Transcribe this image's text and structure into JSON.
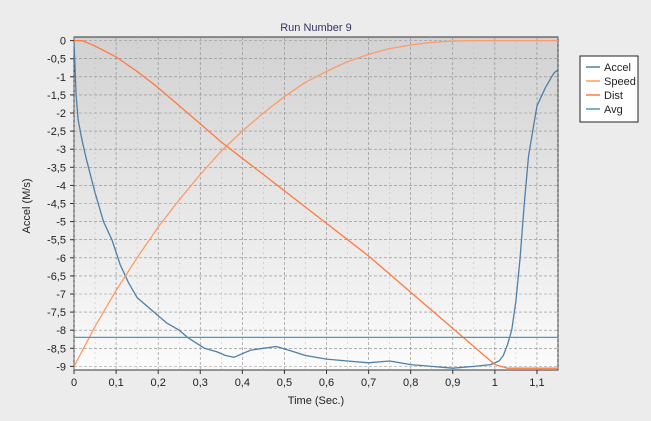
{
  "chart_data": {
    "type": "line",
    "title": "Run Number 9",
    "xlabel": "Time (Sec.)",
    "ylabel": "Accel (M/s)",
    "xlim": [
      0,
      1.15
    ],
    "ylim": [
      -9.1,
      0.1
    ],
    "x_ticks": [
      "0",
      "0,1",
      "0,2",
      "0,3",
      "0,4",
      "0,5",
      "0,6",
      "0,7",
      "0,8",
      "0,9",
      "1",
      "1,1"
    ],
    "y_ticks": [
      "0",
      "-0,5",
      "-1",
      "-1,5",
      "-2",
      "-2,5",
      "-3",
      "-3,5",
      "-4",
      "-4,5",
      "-5",
      "-5,5",
      "-6",
      "-6,5",
      "-7",
      "-7,5",
      "-8",
      "-8,5",
      "-9"
    ],
    "grid": true,
    "legend_position": "right",
    "series": [
      {
        "name": "Accel",
        "color": "#4f7fa8",
        "x": [
          0,
          0.005,
          0.01,
          0.02,
          0.03,
          0.05,
          0.07,
          0.09,
          0.11,
          0.13,
          0.15,
          0.18,
          0.2,
          0.22,
          0.25,
          0.27,
          0.29,
          0.31,
          0.34,
          0.36,
          0.38,
          0.4,
          0.42,
          0.45,
          0.48,
          0.51,
          0.55,
          0.6,
          0.65,
          0.7,
          0.75,
          0.8,
          0.85,
          0.9,
          0.95,
          0.99,
          1.01,
          1.02,
          1.03,
          1.04,
          1.05,
          1.06,
          1.07,
          1.08,
          1.09,
          1.1,
          1.12,
          1.14,
          1.15
        ],
        "y": [
          0,
          -1.5,
          -2.2,
          -2.8,
          -3.3,
          -4.2,
          -5,
          -5.5,
          -6.2,
          -6.7,
          -7.1,
          -7.4,
          -7.6,
          -7.8,
          -8.0,
          -8.2,
          -8.35,
          -8.5,
          -8.6,
          -8.7,
          -8.75,
          -8.65,
          -8.55,
          -8.5,
          -8.45,
          -8.55,
          -8.7,
          -8.8,
          -8.85,
          -8.9,
          -8.85,
          -8.95,
          -9.0,
          -9.05,
          -9.0,
          -8.95,
          -8.85,
          -8.7,
          -8.4,
          -8.0,
          -7.2,
          -6.0,
          -4.5,
          -3.2,
          -2.5,
          -1.8,
          -1.3,
          -0.9,
          -0.8
        ]
      },
      {
        "name": "Speed",
        "color": "#ff9a66",
        "x": [
          0,
          0.05,
          0.1,
          0.15,
          0.2,
          0.25,
          0.3,
          0.35,
          0.4,
          0.45,
          0.5,
          0.55,
          0.6,
          0.65,
          0.7,
          0.75,
          0.8,
          0.85,
          0.9,
          0.95,
          1.0,
          1.05,
          1.1,
          1.15
        ],
        "y": [
          -9.0,
          -7.9,
          -6.9,
          -6.0,
          -5.15,
          -4.4,
          -3.7,
          -3.05,
          -2.5,
          -2.0,
          -1.55,
          -1.15,
          -0.85,
          -0.58,
          -0.38,
          -0.22,
          -0.12,
          -0.05,
          -0.01,
          0,
          0,
          0,
          0,
          0
        ]
      },
      {
        "name": "Dist",
        "color": "#ff7a40",
        "x": [
          0,
          0.02,
          0.05,
          0.1,
          0.15,
          0.2,
          0.25,
          0.3,
          0.35,
          0.4,
          0.45,
          0.5,
          0.55,
          0.6,
          0.65,
          0.7,
          0.75,
          0.8,
          0.85,
          0.9,
          0.95,
          1.0,
          1.03,
          1.05,
          1.1,
          1.15
        ],
        "y": [
          0,
          0,
          -0.15,
          -0.45,
          -0.85,
          -1.3,
          -1.8,
          -2.3,
          -2.8,
          -3.25,
          -3.7,
          -4.15,
          -4.6,
          -5.05,
          -5.5,
          -5.95,
          -6.45,
          -6.95,
          -7.45,
          -7.95,
          -8.45,
          -8.95,
          -9.05,
          -9.05,
          -9.05,
          -9.05
        ]
      },
      {
        "name": "Avg",
        "color": "#4f9ab8",
        "x": [
          0,
          1.15
        ],
        "y": [
          -8.2,
          -8.2
        ]
      }
    ]
  }
}
